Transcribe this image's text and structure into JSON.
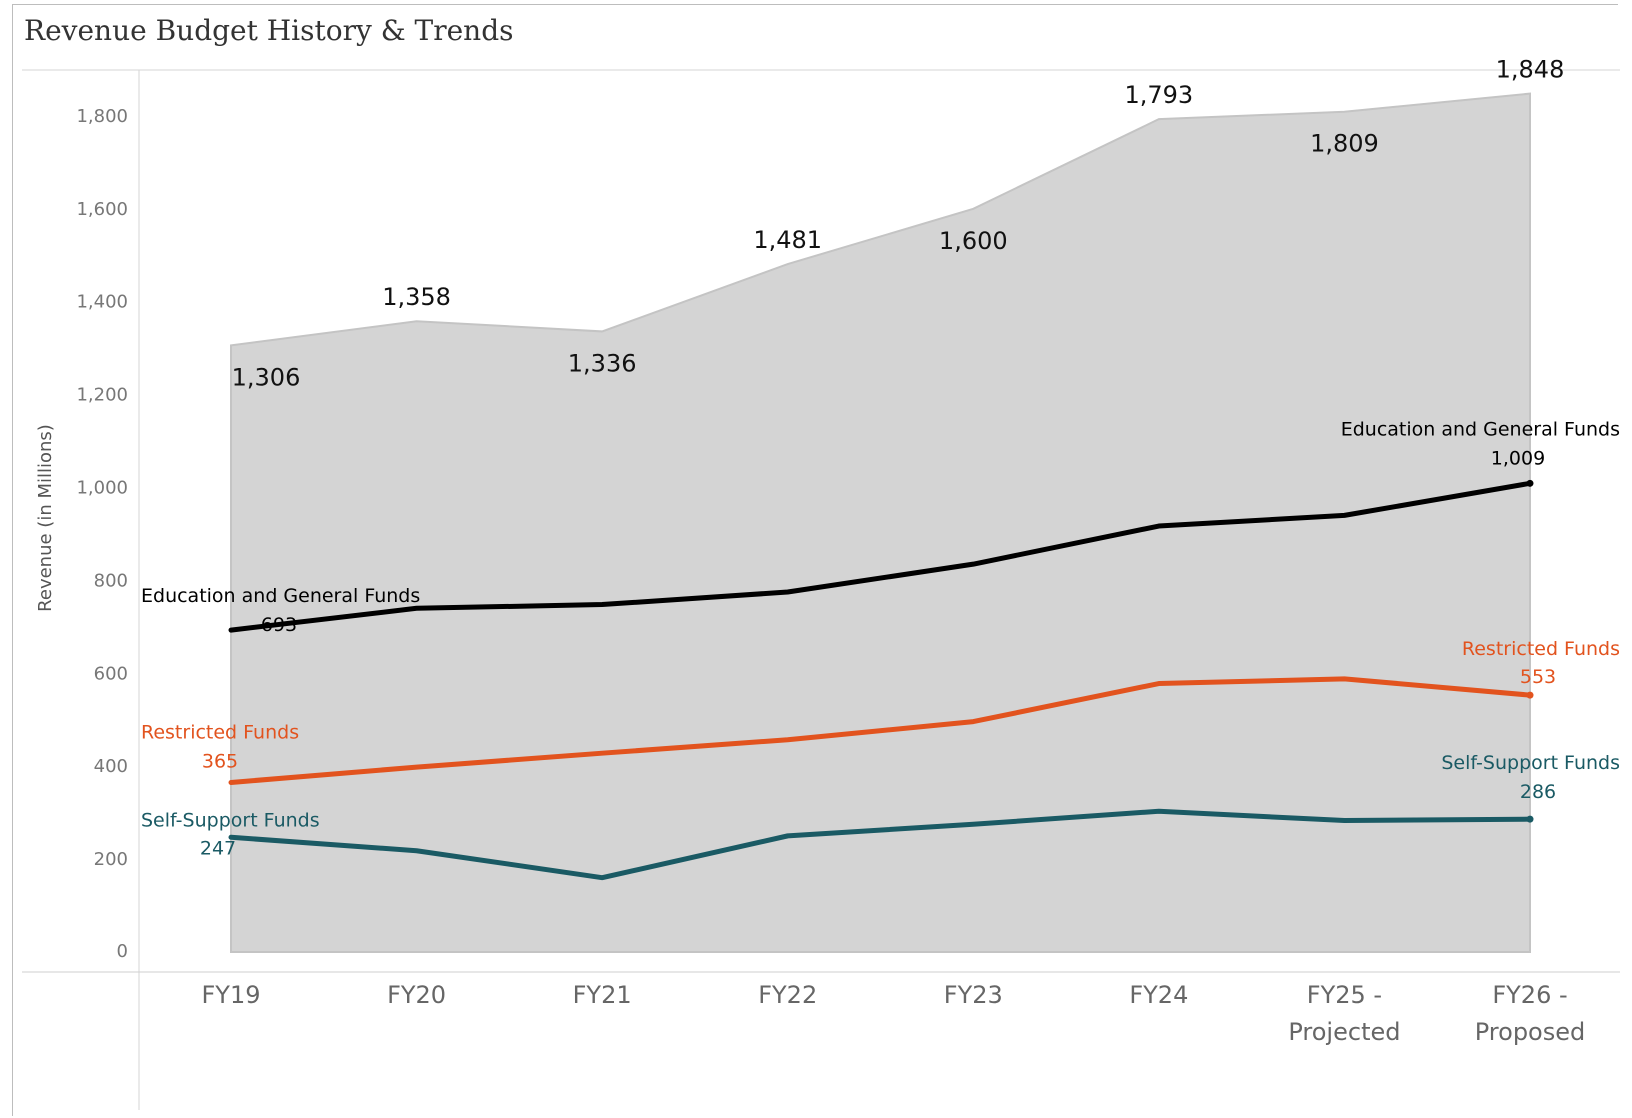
{
  "chart_data": {
    "type": "area",
    "title": "Revenue Budget History & Trends",
    "ylabel": "Revenue (in Millions)",
    "xlabel": "",
    "ylim": [
      0,
      1900
    ],
    "yticks": [
      0,
      200,
      400,
      600,
      800,
      1000,
      1200,
      1400,
      1600,
      1800
    ],
    "ytick_labels": [
      "0",
      "200",
      "400",
      "600",
      "800",
      "1,000",
      "1,200",
      "1,400",
      "1,600",
      "1,800"
    ],
    "categories": [
      [
        "FY19"
      ],
      [
        "FY20"
      ],
      [
        "FY21"
      ],
      [
        "FY22"
      ],
      [
        "FY23"
      ],
      [
        "FY24"
      ],
      [
        "FY25 -",
        "Projected"
      ],
      [
        "FY26 -",
        "Proposed"
      ]
    ],
    "total": {
      "values": [
        1306,
        1358,
        1336,
        1481,
        1600,
        1793,
        1809,
        1848
      ],
      "labels": [
        "1,306",
        "1,358",
        "1,336",
        "1,481",
        "1,600",
        "1,793",
        "1,809",
        "1,848"
      ],
      "color": "#d4d4d4"
    },
    "series": [
      {
        "name": "Education and General Funds",
        "color": "#000000",
        "values": [
          693,
          740,
          748,
          775,
          835,
          917,
          940,
          1009
        ],
        "start_label": "693",
        "end_label": "1,009"
      },
      {
        "name": "Restricted Funds",
        "color": "#e2531e",
        "values": [
          365,
          398,
          428,
          457,
          496,
          578,
          588,
          553
        ],
        "start_label": "365",
        "end_label": "553"
      },
      {
        "name": "Self-Support Funds",
        "color": "#1a5a64",
        "values": [
          247,
          218,
          160,
          250,
          275,
          303,
          283,
          286
        ],
        "start_label": "247",
        "end_label": "286"
      }
    ],
    "grid": false,
    "legend": "none"
  }
}
